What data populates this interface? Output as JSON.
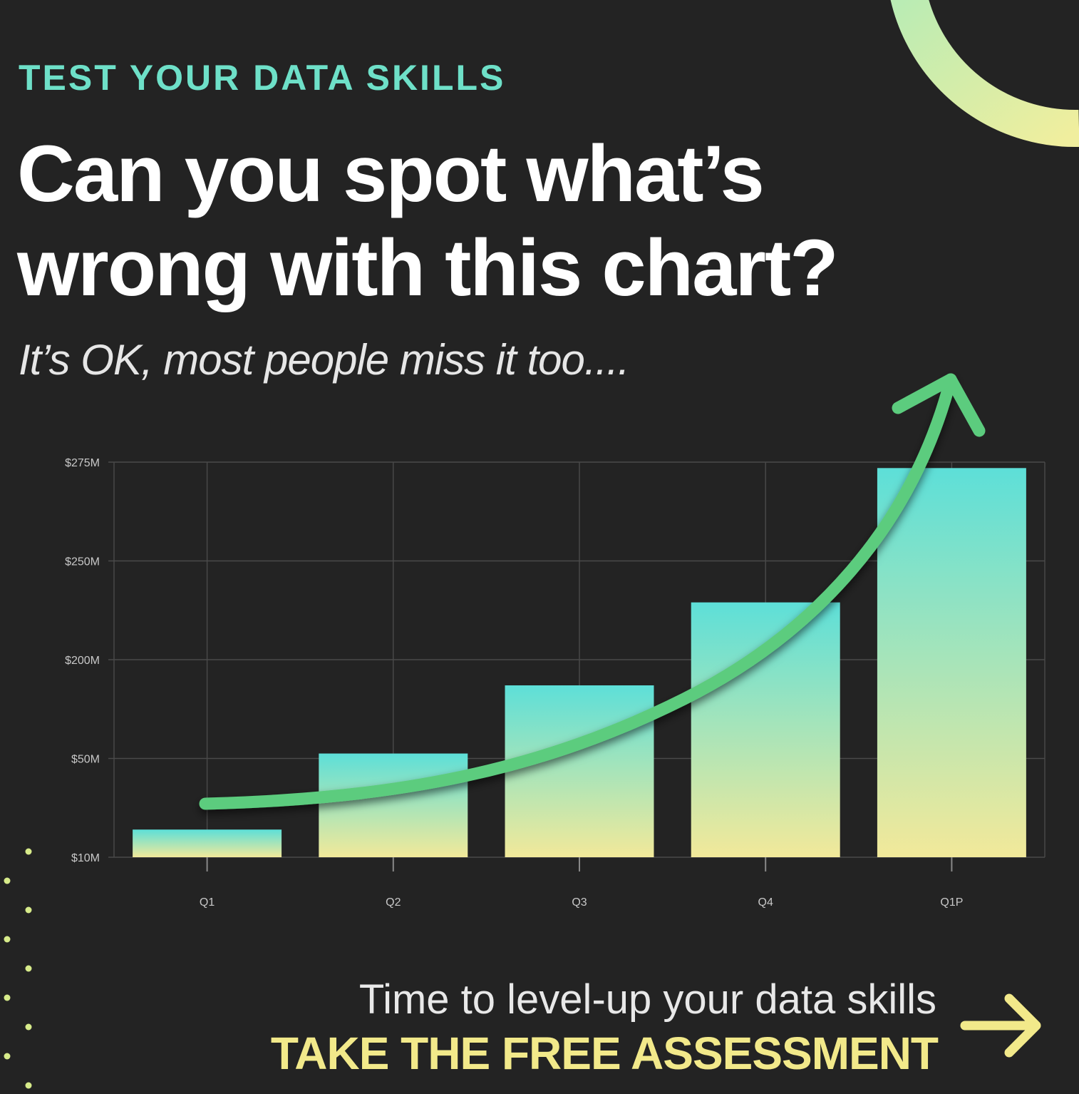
{
  "header": {
    "kicker": "TEST YOUR DATA SKILLS",
    "headline": "Can you spot what’s wrong with this chart?",
    "subhead": "It’s OK, most people miss it too...."
  },
  "chart_data": {
    "type": "bar",
    "categories": [
      "Q1",
      "Q2",
      "Q3",
      "Q4",
      "Q1P"
    ],
    "ytick_labels": [
      "$10M",
      "$50M",
      "$200M",
      "$250M",
      "$275M"
    ],
    "values_in_tick_index_units": [
      0.28,
      1.05,
      1.74,
      2.58,
      3.94
    ],
    "axis_note": "y-axis ticks are equally spaced but not evenly valued",
    "grid": true,
    "bar_gradient": [
      "#5ddfd8",
      "#f2e99a"
    ],
    "trend_arrow_color": "#5ccc7e"
  },
  "cta": {
    "line": "Time to level-up your data skills",
    "button": "TAKE THE FREE ASSESSMENT"
  },
  "colors": {
    "background": "#232323",
    "kicker": "#6ee0c8",
    "cta_accent": "#f2e98a",
    "dots": "#d7eb8a"
  }
}
